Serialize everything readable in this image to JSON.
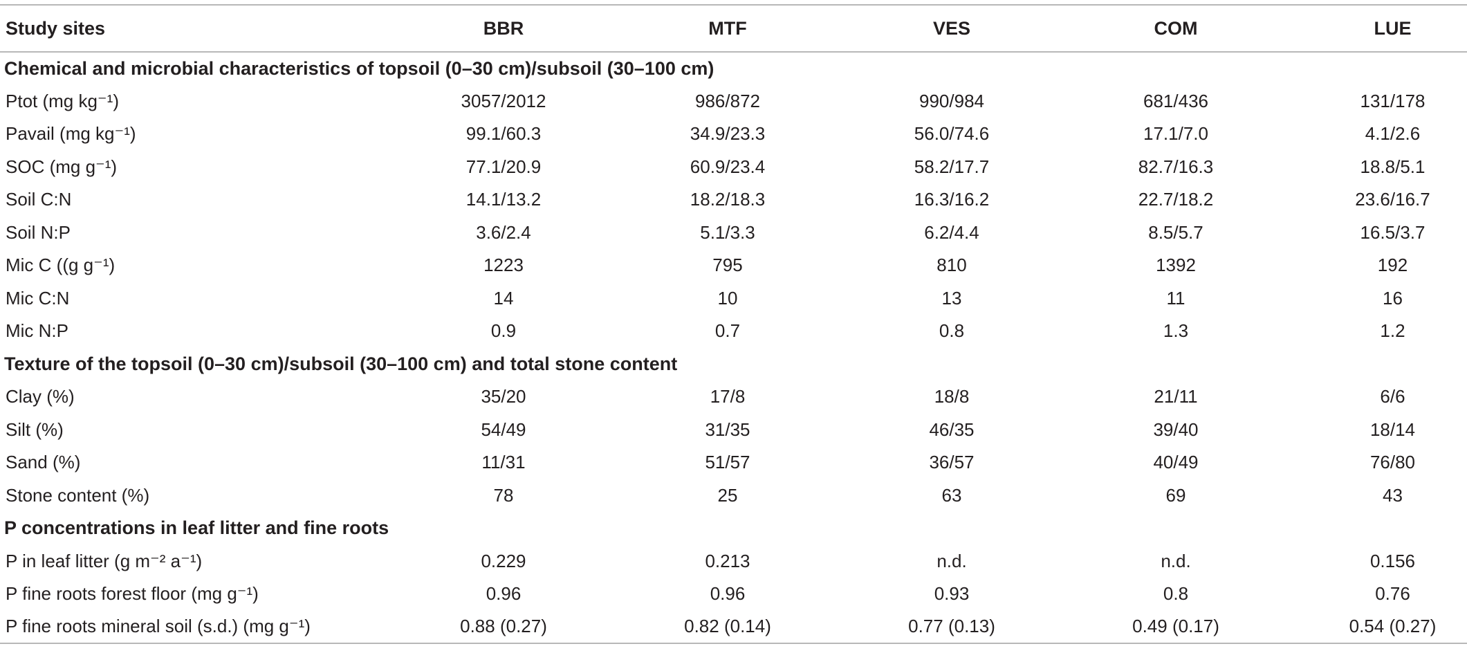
{
  "table": {
    "headers": [
      "Study sites",
      "BBR",
      "MTF",
      "VES",
      "COM",
      "LUE"
    ],
    "sections": [
      {
        "title": "Chemical and microbial characteristics of topsoil (0–30 cm)/subsoil (30–100 cm)",
        "rows": [
          {
            "label": "Ptot (mg kg⁻¹)",
            "values": [
              "3057/2012",
              "986/872",
              "990/984",
              "681/436",
              "131/178"
            ]
          },
          {
            "label": "Pavail (mg kg⁻¹)",
            "values": [
              "99.1/60.3",
              "34.9/23.3",
              "56.0/74.6",
              "17.1/7.0",
              "4.1/2.6"
            ]
          },
          {
            "label": "SOC (mg g⁻¹)",
            "values": [
              "77.1/20.9",
              "60.9/23.4",
              "58.2/17.7",
              "82.7/16.3",
              "18.8/5.1"
            ]
          },
          {
            "label": "Soil C:N",
            "values": [
              "14.1/13.2",
              "18.2/18.3",
              "16.3/16.2",
              "22.7/18.2",
              "23.6/16.7"
            ]
          },
          {
            "label": "Soil N:P",
            "values": [
              "3.6/2.4",
              "5.1/3.3",
              "6.2/4.4",
              "8.5/5.7",
              "16.5/3.7"
            ]
          },
          {
            "label": "Mic C ((g g⁻¹)",
            "values": [
              "1223",
              "795",
              "810",
              "1392",
              "192"
            ]
          },
          {
            "label": "Mic C:N",
            "values": [
              "14",
              "10",
              "13",
              "11",
              "16"
            ]
          },
          {
            "label": "Mic N:P",
            "values": [
              "0.9",
              "0.7",
              "0.8",
              "1.3",
              "1.2"
            ]
          }
        ]
      },
      {
        "title": "Texture of the topsoil (0–30 cm)/subsoil (30–100 cm) and total stone content",
        "rows": [
          {
            "label": "Clay (%)",
            "values": [
              "35/20",
              "17/8",
              "18/8",
              "21/11",
              "6/6"
            ]
          },
          {
            "label": "Silt (%)",
            "values": [
              "54/49",
              "31/35",
              "46/35",
              "39/40",
              "18/14"
            ]
          },
          {
            "label": "Sand (%)",
            "values": [
              "11/31",
              "51/57",
              "36/57",
              "40/49",
              "76/80"
            ]
          },
          {
            "label": "Stone content (%)",
            "values": [
              "78",
              "25",
              "63",
              "69",
              "43"
            ]
          }
        ]
      },
      {
        "title": "P concentrations in leaf litter and fine roots",
        "rows": [
          {
            "label": "P in leaf litter (g m⁻² a⁻¹)",
            "values": [
              "0.229",
              "0.213",
              "n.d.",
              "n.d.",
              "0.156"
            ]
          },
          {
            "label": "P fine roots forest floor (mg g⁻¹)",
            "values": [
              "0.96",
              "0.96",
              "0.93",
              "0.8",
              "0.76"
            ]
          },
          {
            "label": "P fine roots mineral soil (s.d.) (mg g⁻¹)",
            "values": [
              "0.88 (0.27)",
              "0.82 (0.14)",
              "0.77 (0.13)",
              "0.49 (0.17)",
              "0.54 (0.27)"
            ]
          }
        ]
      }
    ]
  }
}
